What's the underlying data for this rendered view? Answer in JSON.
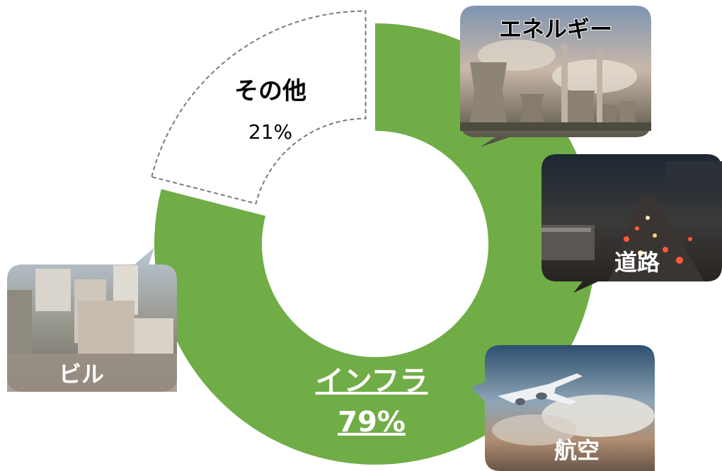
{
  "chart_data": {
    "type": "pie",
    "style": "donut",
    "slices": [
      {
        "label": "インフラ",
        "value": 79,
        "value_label": "79%",
        "color": "#70ad47",
        "outline": "none"
      },
      {
        "label": "その他",
        "value": 21,
        "value_label": "21%",
        "color": "#ffffff",
        "outline": "dashed-gray",
        "exploded": true
      }
    ],
    "callouts": [
      {
        "label": "エネルギー",
        "image": "power-plant-photo",
        "label_color": "#000000"
      },
      {
        "label": "道路",
        "image": "highway-traffic-photo",
        "label_color": "#ffffff"
      },
      {
        "label": "航空",
        "image": "airplane-photo",
        "label_color": "#ffffff"
      },
      {
        "label": "ビル",
        "image": "city-buildings-photo",
        "label_color": "#ffffff"
      }
    ]
  }
}
